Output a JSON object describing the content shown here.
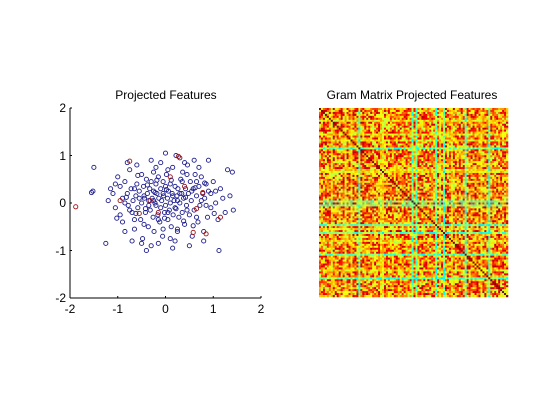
{
  "chart_data": [
    {
      "type": "scatter",
      "title": "Projected Features",
      "xlabel": "",
      "ylabel": "",
      "xlim": [
        -2,
        2
      ],
      "ylim": [
        -2,
        2
      ],
      "xticks": [
        "-2",
        "-1",
        "0",
        "1",
        "2"
      ],
      "yticks": [
        "-2",
        "-1",
        "0",
        "1",
        "2"
      ],
      "grid": false,
      "series": [
        {
          "color": "#1a1a8c",
          "marker": "open-circle",
          "points": [
            [
              -1.5,
              0.75
            ],
            [
              -1.55,
              0.22
            ],
            [
              -1.52,
              0.25
            ],
            [
              -1.25,
              -0.85
            ],
            [
              -1.2,
              0.05
            ],
            [
              -1.15,
              0.3
            ],
            [
              -1.1,
              0.2
            ],
            [
              -1.05,
              -0.1
            ],
            [
              -1.0,
              0.55
            ],
            [
              -0.95,
              -0.25
            ],
            [
              -0.9,
              0.1
            ],
            [
              -0.85,
              0.45
            ],
            [
              -0.85,
              -0.6
            ],
            [
              -0.8,
              0.2
            ],
            [
              -0.78,
              -0.05
            ],
            [
              -0.75,
              0.7
            ],
            [
              -0.72,
              0.3
            ],
            [
              -0.7,
              -0.2
            ],
            [
              -0.68,
              0.05
            ],
            [
              -0.65,
              -0.55
            ],
            [
              -0.62,
              0.15
            ],
            [
              -0.6,
              0.4
            ],
            [
              -0.58,
              -0.1
            ],
            [
              -0.55,
              0.25
            ],
            [
              -0.52,
              -0.35
            ],
            [
              -0.5,
              0.6
            ],
            [
              -0.5,
              0.0
            ],
            [
              -0.48,
              -0.75
            ],
            [
              -0.46,
              0.35
            ],
            [
              -0.44,
              0.1
            ],
            [
              -0.42,
              -0.2
            ],
            [
              -0.4,
              0.5
            ],
            [
              -0.38,
              0.2
            ],
            [
              -0.36,
              -0.5
            ],
            [
              -0.35,
              0.05
            ],
            [
              -0.33,
              0.3
            ],
            [
              -0.32,
              -0.15
            ],
            [
              -0.3,
              0.45
            ],
            [
              -0.28,
              0.1
            ],
            [
              -0.26,
              -0.3
            ],
            [
              -0.25,
              0.25
            ],
            [
              -0.24,
              -0.6
            ],
            [
              -0.22,
              0.0
            ],
            [
              -0.2,
              0.4
            ],
            [
              -0.2,
              -0.05
            ],
            [
              -0.18,
              0.2
            ],
            [
              -0.16,
              -0.25
            ],
            [
              -0.15,
              0.55
            ],
            [
              -0.14,
              0.1
            ],
            [
              -0.12,
              -0.4
            ],
            [
              -0.1,
              0.3
            ],
            [
              -0.1,
              -0.1
            ],
            [
              -0.08,
              0.05
            ],
            [
              -0.06,
              -0.7
            ],
            [
              -0.05,
              0.45
            ],
            [
              -0.04,
              0.15
            ],
            [
              -0.02,
              -0.2
            ],
            [
              0.0,
              0.35
            ],
            [
              0.0,
              -0.05
            ],
            [
              0.02,
              0.6
            ],
            [
              0.04,
              0.1
            ],
            [
              0.05,
              -0.35
            ],
            [
              0.06,
              0.25
            ],
            [
              0.08,
              -0.15
            ],
            [
              0.1,
              0.4
            ],
            [
              0.1,
              0.0
            ],
            [
              0.12,
              -0.5
            ],
            [
              0.14,
              0.2
            ],
            [
              0.15,
              0.75
            ],
            [
              0.16,
              -0.25
            ],
            [
              0.18,
              0.05
            ],
            [
              0.2,
              0.35
            ],
            [
              0.2,
              -0.1
            ],
            [
              0.22,
              1.0
            ],
            [
              0.24,
              0.15
            ],
            [
              0.25,
              -0.6
            ],
            [
              0.26,
              0.3
            ],
            [
              0.28,
              -0.3
            ],
            [
              0.3,
              0.0
            ],
            [
              0.32,
              0.5
            ],
            [
              0.34,
              0.2
            ],
            [
              0.35,
              -0.2
            ],
            [
              0.36,
              0.65
            ],
            [
              0.38,
              0.1
            ],
            [
              0.4,
              -0.45
            ],
            [
              0.42,
              0.3
            ],
            [
              0.44,
              -0.05
            ],
            [
              0.46,
              0.8
            ],
            [
              0.48,
              0.2
            ],
            [
              0.5,
              -0.25
            ],
            [
              0.52,
              0.45
            ],
            [
              0.54,
              0.05
            ],
            [
              0.56,
              -0.7
            ],
            [
              0.58,
              0.3
            ],
            [
              0.6,
              -0.15
            ],
            [
              0.62,
              0.6
            ],
            [
              0.65,
              0.15
            ],
            [
              0.68,
              -0.4
            ],
            [
              0.7,
              0.35
            ],
            [
              0.72,
              -0.05
            ],
            [
              0.75,
              0.55
            ],
            [
              0.78,
              0.2
            ],
            [
              0.8,
              -0.6
            ],
            [
              0.82,
              0.1
            ],
            [
              0.85,
              0.4
            ],
            [
              0.88,
              -0.3
            ],
            [
              0.9,
              0.25
            ],
            [
              0.95,
              -0.1
            ],
            [
              1.0,
              0.45
            ],
            [
              1.05,
              0.0
            ],
            [
              1.1,
              -0.35
            ],
            [
              1.12,
              -1.0
            ],
            [
              1.15,
              0.3
            ],
            [
              1.2,
              0.1
            ],
            [
              1.25,
              -0.2
            ],
            [
              1.3,
              0.7
            ],
            [
              1.35,
              0.15
            ],
            [
              1.4,
              0.65
            ],
            [
              1.42,
              -0.15
            ],
            [
              -0.3,
              -0.9
            ],
            [
              -0.1,
              0.85
            ],
            [
              0.3,
              0.95
            ],
            [
              0.0,
              1.05
            ],
            [
              -0.6,
              0.8
            ],
            [
              0.5,
              -0.9
            ],
            [
              0.2,
              -0.8
            ],
            [
              -0.4,
              -1.0
            ],
            [
              0.9,
              0.9
            ],
            [
              0.7,
              0.75
            ],
            [
              -0.9,
              -0.4
            ],
            [
              -0.2,
              0.75
            ],
            [
              0.1,
              -0.75
            ],
            [
              -0.7,
              -0.8
            ],
            [
              0.35,
              0.45
            ],
            [
              -0.45,
              0.15
            ],
            [
              -0.15,
              -0.35
            ],
            [
              0.25,
              0.05
            ],
            [
              0.15,
              0.15
            ],
            [
              -0.05,
              0.2
            ],
            [
              0.45,
              -0.15
            ],
            [
              -0.25,
              0.05
            ],
            [
              0.05,
              -0.2
            ],
            [
              0.3,
              0.2
            ],
            [
              -0.35,
              -0.05
            ],
            [
              0.55,
              0.25
            ],
            [
              -0.55,
              0.1
            ],
            [
              0.65,
              -0.3
            ],
            [
              -0.65,
              0.3
            ],
            [
              0.75,
              0.05
            ],
            [
              -0.75,
              -0.15
            ],
            [
              0.85,
              -0.05
            ],
            [
              -0.85,
              0.0
            ],
            [
              0.95,
              0.2
            ],
            [
              -0.95,
              0.35
            ],
            [
              1.05,
              0.25
            ],
            [
              -1.05,
              0.4
            ],
            [
              0.4,
              0.85
            ],
            [
              -0.3,
              0.9
            ],
            [
              0.6,
              0.9
            ],
            [
              -0.5,
              -0.85
            ],
            [
              0.15,
              -0.95
            ],
            [
              -0.15,
              -0.85
            ],
            [
              0.8,
              -0.8
            ],
            [
              -0.8,
              0.85
            ],
            [
              0.05,
              0.7
            ],
            [
              -0.05,
              -0.55
            ],
            [
              0.25,
              -0.55
            ],
            [
              -0.25,
              0.65
            ],
            [
              0.45,
              0.6
            ],
            [
              -0.45,
              -0.45
            ],
            [
              0.65,
              0.45
            ],
            [
              -0.65,
              -0.35
            ],
            [
              0.12,
              0.48
            ],
            [
              -0.18,
              0.48
            ],
            [
              0.38,
              -0.38
            ],
            [
              -0.38,
              0.38
            ],
            [
              0.58,
              -0.48
            ],
            [
              -0.58,
              0.58
            ],
            [
              0.02,
              0.28
            ],
            [
              -0.02,
              -0.32
            ],
            [
              0.22,
              -0.12
            ],
            [
              -0.22,
              0.22
            ],
            [
              0.42,
              0.12
            ],
            [
              -0.42,
              -0.12
            ],
            [
              0.62,
              0.32
            ],
            [
              -0.62,
              -0.22
            ],
            [
              0.82,
              0.42
            ],
            [
              -0.82,
              0.12
            ],
            [
              1.02,
              -0.22
            ],
            [
              -1.02,
              -0.32
            ]
          ]
        },
        {
          "color": "#a01010",
          "marker": "open-circle",
          "points": [
            [
              -1.88,
              -0.08
            ],
            [
              -0.75,
              0.88
            ],
            [
              0.27,
              0.98
            ],
            [
              0.65,
              -0.12
            ],
            [
              0.58,
              -0.62
            ],
            [
              -0.32,
              0.05
            ],
            [
              0.78,
              0.22
            ],
            [
              -0.55,
              -0.22
            ],
            [
              0.1,
              0.55
            ],
            [
              1.15,
              -0.3
            ],
            [
              -0.95,
              0.05
            ],
            [
              0.4,
              0.35
            ],
            [
              -0.15,
              -0.2
            ],
            [
              0.85,
              -0.65
            ]
          ]
        }
      ]
    },
    {
      "type": "heatmap",
      "title": "Gram Matrix Projected Features",
      "colormap": "jet",
      "size": 96,
      "seed": 12345
    }
  ]
}
